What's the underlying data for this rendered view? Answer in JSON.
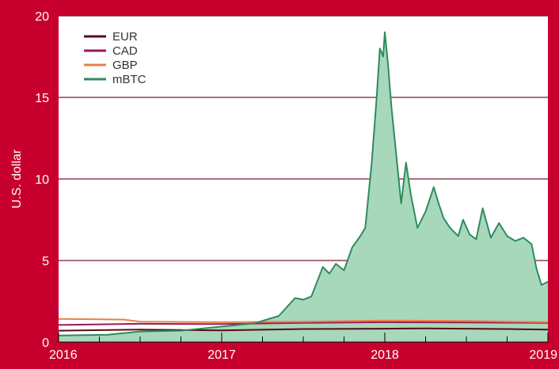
{
  "chart_data": {
    "type": "line",
    "ylabel": "U.S. dollar",
    "xlabel": "",
    "xlim": [
      2016,
      2019
    ],
    "ylim": [
      0,
      20
    ],
    "x_ticks": [
      "2016",
      "2017",
      "2018",
      "2019"
    ],
    "y_ticks": [
      "0",
      "5",
      "10",
      "15",
      "20"
    ],
    "grid": "horizontal",
    "legend_position": "top-left",
    "colors": {
      "background": "#c8002e",
      "plot_area": "#ffffff",
      "grid": "#7a1a28"
    },
    "series": [
      {
        "name": "EUR",
        "color": "#5a0a14",
        "x": [
          2016.0,
          2016.5,
          2017.0,
          2017.5,
          2018.0,
          2018.25,
          2018.5,
          2018.75,
          2019.0
        ],
        "y": [
          0.7,
          0.76,
          0.72,
          0.8,
          0.82,
          0.84,
          0.82,
          0.8,
          0.76
        ]
      },
      {
        "name": "CAD",
        "color": "#9a1a5a",
        "x": [
          2016.0,
          2016.5,
          2017.0,
          2017.5,
          2018.0,
          2018.5,
          2019.0
        ],
        "y": [
          1.05,
          1.12,
          1.1,
          1.18,
          1.22,
          1.2,
          1.18
        ]
      },
      {
        "name": "GBP",
        "color": "#e8804a",
        "x": [
          2016.0,
          2016.4,
          2016.5,
          2017.0,
          2017.5,
          2018.0,
          2018.5,
          2019.0
        ],
        "y": [
          1.42,
          1.38,
          1.25,
          1.22,
          1.25,
          1.32,
          1.3,
          1.22
        ]
      },
      {
        "name": "mBTC",
        "color": "#2e8b5e",
        "fill": "#a8d8bc",
        "x": [
          2016.0,
          2016.3,
          2016.5,
          2016.75,
          2017.0,
          2017.2,
          2017.35,
          2017.45,
          2017.5,
          2017.55,
          2017.62,
          2017.66,
          2017.7,
          2017.75,
          2017.8,
          2017.85,
          2017.88,
          2017.92,
          2017.95,
          2017.97,
          2017.99,
          2018.0,
          2018.02,
          2018.04,
          2018.07,
          2018.1,
          2018.13,
          2018.16,
          2018.2,
          2018.25,
          2018.3,
          2018.33,
          2018.36,
          2018.4,
          2018.45,
          2018.48,
          2018.52,
          2018.56,
          2018.6,
          2018.65,
          2018.7,
          2018.75,
          2018.8,
          2018.85,
          2018.9,
          2018.93,
          2018.96,
          2019.0
        ],
        "y": [
          0.4,
          0.45,
          0.65,
          0.7,
          0.95,
          1.15,
          1.6,
          2.7,
          2.6,
          2.8,
          4.6,
          4.2,
          4.8,
          4.4,
          5.8,
          6.5,
          7.0,
          11.0,
          15.0,
          18.0,
          17.5,
          19.0,
          17.0,
          14.5,
          11.5,
          8.5,
          11.0,
          9.0,
          7.0,
          8.0,
          9.5,
          8.5,
          7.6,
          7.0,
          6.5,
          7.5,
          6.6,
          6.3,
          8.2,
          6.4,
          7.3,
          6.5,
          6.2,
          6.4,
          6.0,
          4.5,
          3.5,
          3.7
        ]
      }
    ]
  }
}
